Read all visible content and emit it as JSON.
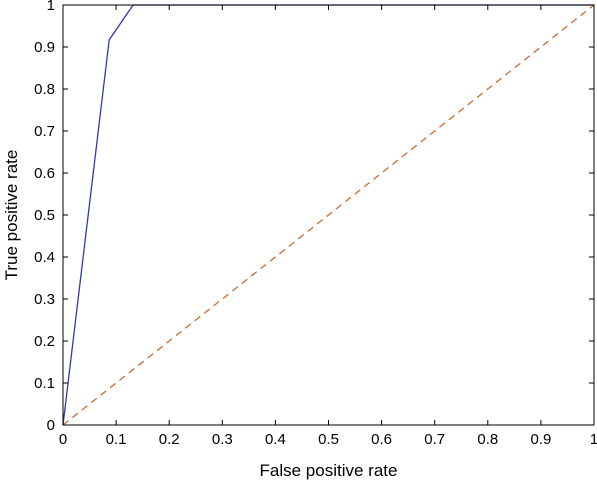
{
  "chart_data": {
    "type": "line",
    "xlabel": "False positive rate",
    "ylabel": "True positive rate",
    "xlim": [
      0,
      1
    ],
    "ylim": [
      0,
      1
    ],
    "xticks": [
      0,
      0.1,
      0.2,
      0.3,
      0.4,
      0.5,
      0.6,
      0.7,
      0.8,
      0.9,
      1
    ],
    "yticks": [
      0,
      0.1,
      0.2,
      0.3,
      0.4,
      0.5,
      0.6,
      0.7,
      0.8,
      0.9,
      1
    ],
    "xtick_labels": [
      "0",
      "0.1",
      "0.2",
      "0.3",
      "0.4",
      "0.5",
      "0.6",
      "0.7",
      "0.8",
      "0.9",
      "1"
    ],
    "ytick_labels": [
      "0",
      "0.1",
      "0.2",
      "0.3",
      "0.4",
      "0.5",
      "0.6",
      "0.7",
      "0.8",
      "0.9",
      "1"
    ],
    "grid": false,
    "legend": "none",
    "series": [
      {
        "style": "solid",
        "color": "#2a3bb4",
        "x": [
          0,
          0.087,
          0.132,
          1
        ],
        "y": [
          0,
          0.917,
          1,
          1
        ]
      },
      {
        "style": "dashed",
        "color": "#d2692d",
        "x": [
          0,
          1
        ],
        "y": [
          0,
          1
        ]
      }
    ]
  }
}
